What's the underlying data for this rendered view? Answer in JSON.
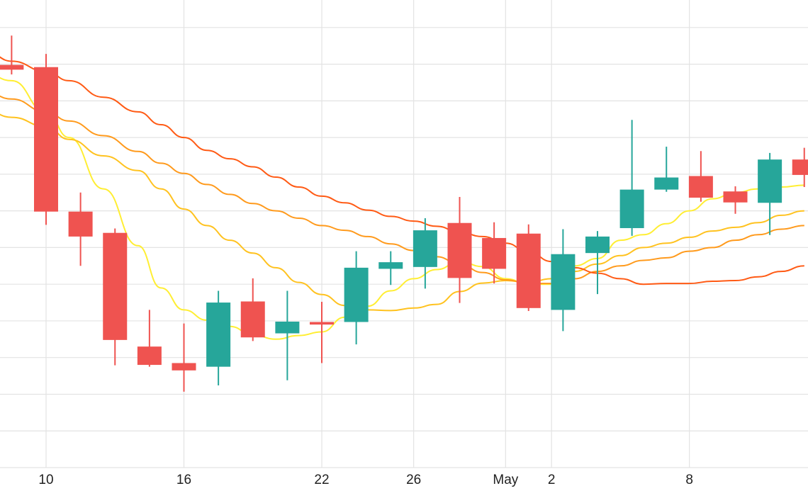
{
  "chart_data": {
    "type": "candlestick",
    "grid": true,
    "x_tick_labels": [
      {
        "label": "10",
        "day": 10
      },
      {
        "label": "16",
        "day": 16
      },
      {
        "label": "22",
        "day": 22
      },
      {
        "label": "26",
        "day": 26
      },
      {
        "label": "May",
        "day": 30
      },
      {
        "label": "2",
        "day": 32
      },
      {
        "label": "8",
        "day": 38
      }
    ],
    "ylim": [
      0,
      12.75
    ],
    "y_grid_step": 1,
    "colors": {
      "up": "#26a69a",
      "down": "#ef5350",
      "grid": "#e3e3e3",
      "ma": [
        "#ffee33",
        "#ffc21f",
        "#ff9a1c",
        "#ff5a14"
      ]
    },
    "candles": [
      {
        "day": 8.5,
        "open": 10.98,
        "high": 11.78,
        "low": 10.72,
        "close": 10.85
      },
      {
        "day": 10,
        "open": 10.92,
        "high": 11.28,
        "low": 6.62,
        "close": 6.98
      },
      {
        "day": 11.5,
        "open": 6.98,
        "high": 7.5,
        "low": 5.5,
        "close": 6.3
      },
      {
        "day": 13,
        "open": 6.4,
        "high": 6.52,
        "low": 2.79,
        "close": 3.48
      },
      {
        "day": 14.5,
        "open": 3.3,
        "high": 4.3,
        "low": 2.75,
        "close": 2.8
      },
      {
        "day": 16,
        "open": 2.85,
        "high": 3.93,
        "low": 2.07,
        "close": 2.65
      },
      {
        "day": 17.5,
        "open": 2.75,
        "high": 4.82,
        "low": 2.24,
        "close": 4.5
      },
      {
        "day": 19,
        "open": 4.53,
        "high": 5.16,
        "low": 3.45,
        "close": 3.55
      },
      {
        "day": 20.5,
        "open": 3.66,
        "high": 4.82,
        "low": 2.38,
        "close": 3.98
      },
      {
        "day": 22,
        "open": 3.97,
        "high": 4.52,
        "low": 2.85,
        "close": 3.9
      },
      {
        "day": 23.5,
        "open": 3.97,
        "high": 5.9,
        "low": 3.36,
        "close": 5.45
      },
      {
        "day": 25,
        "open": 5.42,
        "high": 5.9,
        "low": 4.98,
        "close": 5.6
      },
      {
        "day": 26.5,
        "open": 5.47,
        "high": 6.8,
        "low": 4.88,
        "close": 6.47
      },
      {
        "day": 28,
        "open": 6.67,
        "high": 7.38,
        "low": 4.49,
        "close": 5.17
      },
      {
        "day": 29.5,
        "open": 6.26,
        "high": 6.69,
        "low": 5.02,
        "close": 5.42
      },
      {
        "day": 31,
        "open": 6.38,
        "high": 6.63,
        "low": 4.27,
        "close": 4.35
      },
      {
        "day": 32.5,
        "open": 4.3,
        "high": 6.5,
        "low": 3.72,
        "close": 5.82
      },
      {
        "day": 34,
        "open": 5.85,
        "high": 6.45,
        "low": 4.73,
        "close": 6.3
      },
      {
        "day": 35.5,
        "open": 6.53,
        "high": 9.48,
        "low": 6.32,
        "close": 7.58
      },
      {
        "day": 37,
        "open": 7.58,
        "high": 8.75,
        "low": 7.52,
        "close": 7.91
      },
      {
        "day": 38.5,
        "open": 7.95,
        "high": 8.63,
        "low": 7.25,
        "close": 7.36
      },
      {
        "day": 40,
        "open": 7.53,
        "high": 7.67,
        "low": 6.92,
        "close": 7.23
      },
      {
        "day": 41.5,
        "open": 7.22,
        "high": 8.58,
        "low": 6.34,
        "close": 8.4
      },
      {
        "day": 43,
        "open": 8.4,
        "high": 8.72,
        "low": 7.65,
        "close": 7.98
      }
    ],
    "moving_averages": [
      {
        "color_index": 0,
        "points": [
          [
            7.5,
            10.7
          ],
          [
            8.5,
            10.55
          ],
          [
            10,
            9.7
          ],
          [
            11,
            9.0
          ],
          [
            12.5,
            7.6
          ],
          [
            14,
            6.05
          ],
          [
            15,
            4.9
          ],
          [
            16,
            4.3
          ],
          [
            17,
            4.02
          ],
          [
            18,
            3.85
          ],
          [
            19,
            3.62
          ],
          [
            20,
            3.5
          ],
          [
            21,
            3.6
          ],
          [
            22,
            3.7
          ],
          [
            23,
            4.1
          ],
          [
            24,
            4.4
          ],
          [
            25,
            4.82
          ],
          [
            26,
            5.15
          ],
          [
            27,
            5.4
          ],
          [
            28,
            5.62
          ],
          [
            29,
            5.48
          ],
          [
            30,
            5.15
          ],
          [
            31,
            5.0
          ],
          [
            32,
            5.0
          ],
          [
            33,
            5.5
          ],
          [
            34,
            5.7
          ],
          [
            35,
            6.2
          ],
          [
            36,
            6.35
          ],
          [
            37,
            6.65
          ],
          [
            38,
            7.0
          ],
          [
            39,
            7.33
          ],
          [
            40,
            7.5
          ],
          [
            41,
            7.6
          ],
          [
            42,
            7.65
          ],
          [
            43,
            7.7
          ]
        ]
      },
      {
        "color_index": 1,
        "points": [
          [
            7.5,
            9.7
          ],
          [
            8.5,
            9.55
          ],
          [
            10,
            9.3
          ],
          [
            11,
            8.95
          ],
          [
            12.5,
            8.5
          ],
          [
            14,
            8.1
          ],
          [
            15,
            7.6
          ],
          [
            16,
            7.05
          ],
          [
            17,
            6.6
          ],
          [
            18,
            6.2
          ],
          [
            19,
            5.85
          ],
          [
            20,
            5.45
          ],
          [
            21,
            5.05
          ],
          [
            22,
            4.72
          ],
          [
            23,
            4.42
          ],
          [
            24,
            4.3
          ],
          [
            25,
            4.28
          ],
          [
            26,
            4.35
          ],
          [
            27,
            4.45
          ],
          [
            28,
            4.8
          ],
          [
            29,
            5.03
          ],
          [
            30,
            5.1
          ],
          [
            31,
            5.05
          ],
          [
            32,
            5.15
          ],
          [
            33,
            5.35
          ],
          [
            34,
            5.55
          ],
          [
            35,
            5.78
          ],
          [
            36,
            6.0
          ],
          [
            37,
            6.12
          ],
          [
            38,
            6.28
          ],
          [
            39,
            6.45
          ],
          [
            40,
            6.55
          ],
          [
            41,
            6.68
          ],
          [
            42,
            6.88
          ],
          [
            43,
            7.0
          ]
        ]
      },
      {
        "color_index": 2,
        "points": [
          [
            7.5,
            10.2
          ],
          [
            8.5,
            10.05
          ],
          [
            10,
            9.7
          ],
          [
            11,
            9.45
          ],
          [
            12.5,
            9.05
          ],
          [
            14,
            8.62
          ],
          [
            15,
            8.3
          ],
          [
            16,
            8.02
          ],
          [
            17,
            7.72
          ],
          [
            18,
            7.45
          ],
          [
            19,
            7.2
          ],
          [
            20,
            7.0
          ],
          [
            21,
            6.8
          ],
          [
            22,
            6.6
          ],
          [
            23,
            6.47
          ],
          [
            24,
            6.3
          ],
          [
            25,
            6.1
          ],
          [
            26,
            5.92
          ],
          [
            27,
            5.75
          ],
          [
            28,
            5.55
          ],
          [
            29,
            5.32
          ],
          [
            30,
            5.12
          ],
          [
            31,
            5.02
          ],
          [
            32,
            5.02
          ],
          [
            33,
            5.15
          ],
          [
            34,
            5.35
          ],
          [
            35,
            5.5
          ],
          [
            36,
            5.65
          ],
          [
            37,
            5.72
          ],
          [
            38,
            5.9
          ],
          [
            39,
            6.0
          ],
          [
            40,
            6.2
          ],
          [
            41,
            6.35
          ],
          [
            42,
            6.5
          ],
          [
            43,
            6.6
          ]
        ]
      },
      {
        "color_index": 3,
        "points": [
          [
            7.5,
            11.3
          ],
          [
            8.5,
            11.08
          ],
          [
            10,
            10.8
          ],
          [
            11,
            10.55
          ],
          [
            12.5,
            10.1
          ],
          [
            14,
            9.7
          ],
          [
            15,
            9.35
          ],
          [
            16,
            9.0
          ],
          [
            17,
            8.65
          ],
          [
            18,
            8.42
          ],
          [
            19,
            8.2
          ],
          [
            20,
            7.92
          ],
          [
            21,
            7.65
          ],
          [
            22,
            7.4
          ],
          [
            23,
            7.22
          ],
          [
            24,
            7.02
          ],
          [
            25,
            6.85
          ],
          [
            26,
            6.72
          ],
          [
            27,
            6.58
          ],
          [
            28,
            6.42
          ],
          [
            29,
            6.3
          ],
          [
            30,
            6.12
          ],
          [
            31,
            5.88
          ],
          [
            32,
            5.62
          ],
          [
            33,
            5.45
          ],
          [
            34,
            5.3
          ],
          [
            35,
            5.15
          ],
          [
            36,
            5.0
          ],
          [
            37,
            5.02
          ],
          [
            38,
            5.02
          ],
          [
            39,
            5.08
          ],
          [
            40,
            5.1
          ],
          [
            41,
            5.2
          ],
          [
            42,
            5.35
          ],
          [
            43,
            5.5
          ]
        ]
      }
    ]
  }
}
